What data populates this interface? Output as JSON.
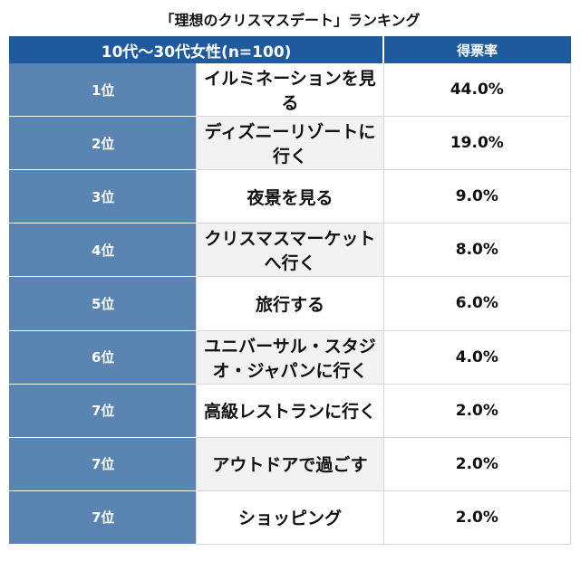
{
  "title": "「理想のクリスマスデート」ランキング",
  "header": {
    "group_label": "10代〜30代女性(n=100)",
    "rate_label": "得票率"
  },
  "chart_data": {
    "type": "table",
    "title": "「理想のクリスマスデート」ランキング",
    "columns": [
      "10代〜30代女性(n=100)",
      "得票率"
    ],
    "rows": [
      {
        "rank": "1位",
        "label": "イルミネーションを見る",
        "pct": "44.0%",
        "value": 44.0
      },
      {
        "rank": "2位",
        "label": "ディズニーリゾートに行く",
        "pct": "19.0%",
        "value": 19.0
      },
      {
        "rank": "3位",
        "label": "夜景を見る",
        "pct": "9.0%",
        "value": 9.0
      },
      {
        "rank": "4位",
        "label": "クリスマスマーケットへ行く",
        "pct": "8.0%",
        "value": 8.0
      },
      {
        "rank": "5位",
        "label": "旅行する",
        "pct": "6.0%",
        "value": 6.0
      },
      {
        "rank": "6位",
        "label": "ユニバーサル・スタジオ・ジャパンに行く",
        "pct": "4.0%",
        "value": 4.0
      },
      {
        "rank": "7位",
        "label": "高級レストランに行く",
        "pct": "2.0%",
        "value": 2.0
      },
      {
        "rank": "7位",
        "label": "アウトドアで過ごす",
        "pct": "2.0%",
        "value": 2.0
      },
      {
        "rank": "7位",
        "label": "ショッピング",
        "pct": "2.0%",
        "value": 2.0
      }
    ]
  },
  "colors": {
    "header_bg": "#1f5a9e",
    "rank_bg": "#5a85b2",
    "alt_row_bg": "#f2f2f2"
  }
}
